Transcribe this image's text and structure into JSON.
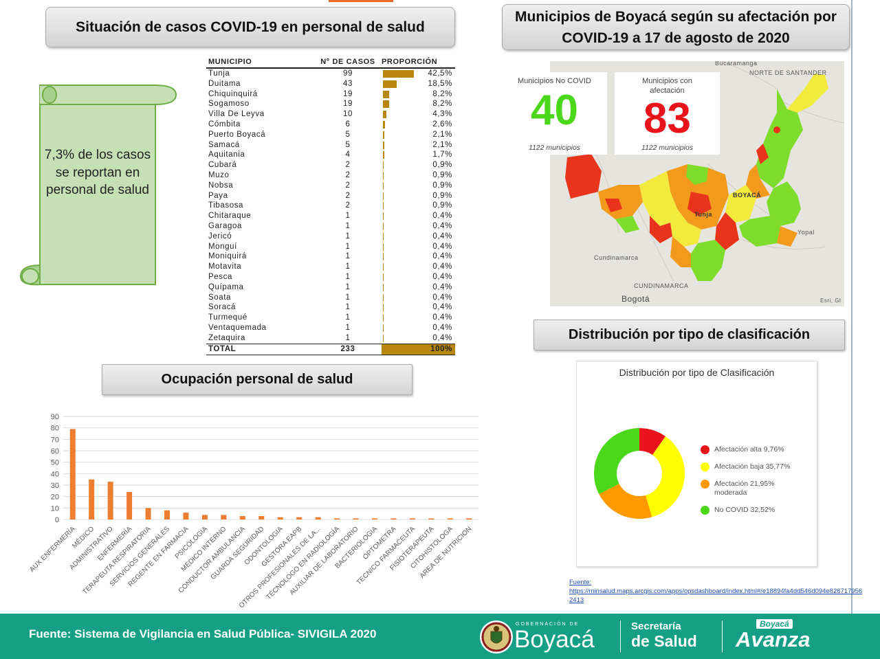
{
  "titles": {
    "cases_staff": "Situación de casos COVID-19 en personal de salud",
    "map_line1": "Municipios de Boyacá según su afectación por",
    "map_line2": "COVID-19 a 17 de agosto de 2020",
    "occupation": "Ocupación personal de salud",
    "distribution": "Distribución por tipo de clasificación"
  },
  "scroll_note": "7,3% de los casos se reportan en personal de salud",
  "table": {
    "headers": [
      "MUNICIPIO",
      "N° DE CASOS",
      "PROPORCIÓN"
    ],
    "rows": [
      {
        "municipio": "Tunja",
        "casos": "99",
        "proporcion": "42,5%",
        "p": 42.5
      },
      {
        "municipio": "Duitama",
        "casos": "43",
        "proporcion": "18,5%",
        "p": 18.5
      },
      {
        "municipio": "Chiquinquirá",
        "casos": "19",
        "proporcion": "8,2%",
        "p": 8.2
      },
      {
        "municipio": "Sogamoso",
        "casos": "19",
        "proporcion": "8,2%",
        "p": 8.2
      },
      {
        "municipio": "Villa De Leyva",
        "casos": "10",
        "proporcion": "4,3%",
        "p": 4.3
      },
      {
        "municipio": "Cómbita",
        "casos": "6",
        "proporcion": "2,6%",
        "p": 2.6
      },
      {
        "municipio": "Puerto Boyacá",
        "casos": "5",
        "proporcion": "2,1%",
        "p": 2.1
      },
      {
        "municipio": "Samacá",
        "casos": "5",
        "proporcion": "2,1%",
        "p": 2.1
      },
      {
        "municipio": "Aquitania",
        "casos": "4",
        "proporcion": "1,7%",
        "p": 1.7
      },
      {
        "municipio": "Cubará",
        "casos": "2",
        "proporcion": "0,9%",
        "p": 0.9
      },
      {
        "municipio": "Muzo",
        "casos": "2",
        "proporcion": "0,9%",
        "p": 0.9
      },
      {
        "municipio": "Nobsa",
        "casos": "2",
        "proporcion": "0,9%",
        "p": 0.9
      },
      {
        "municipio": "Paya",
        "casos": "2",
        "proporcion": "0,9%",
        "p": 0.9
      },
      {
        "municipio": "Tibasosa",
        "casos": "2",
        "proporcion": "0,9%",
        "p": 0.9
      },
      {
        "municipio": "Chitaraque",
        "casos": "1",
        "proporcion": "0,4%",
        "p": 0.4
      },
      {
        "municipio": "Garagoa",
        "casos": "1",
        "proporcion": "0,4%",
        "p": 0.4
      },
      {
        "municipio": "Jericó",
        "casos": "1",
        "proporcion": "0,4%",
        "p": 0.4
      },
      {
        "municipio": "Monguí",
        "casos": "1",
        "proporcion": "0,4%",
        "p": 0.4
      },
      {
        "municipio": "Moniquirá",
        "casos": "1",
        "proporcion": "0,4%",
        "p": 0.4
      },
      {
        "municipio": "Motavita",
        "casos": "1",
        "proporcion": "0,4%",
        "p": 0.4
      },
      {
        "municipio": "Pesca",
        "casos": "1",
        "proporcion": "0,4%",
        "p": 0.4
      },
      {
        "municipio": "Quípama",
        "casos": "1",
        "proporcion": "0,4%",
        "p": 0.4
      },
      {
        "municipio": "Soata",
        "casos": "1",
        "proporcion": "0,4%",
        "p": 0.4
      },
      {
        "municipio": "Soracá",
        "casos": "1",
        "proporcion": "0,4%",
        "p": 0.4
      },
      {
        "municipio": "Turmequé",
        "casos": "1",
        "proporcion": "0,4%",
        "p": 0.4
      },
      {
        "municipio": "Ventaquemada",
        "casos": "1",
        "proporcion": "0,4%",
        "p": 0.4
      },
      {
        "municipio": "Zetaquira",
        "casos": "1",
        "proporcion": "0,4%",
        "p": 0.4
      }
    ],
    "total": {
      "label": "TOTAL",
      "casos": "233",
      "proporcion": "100%"
    },
    "bar_color": "#b8860b"
  },
  "map": {
    "kpi_no_covid": {
      "label": "Municipios No COVID",
      "value": "40",
      "sub": "1122 municipios",
      "color": "#4cd81a"
    },
    "kpi_covid": {
      "label": "Municipios con afectación",
      "value": "83",
      "sub": "1122 municipios",
      "color": "#e8131b"
    },
    "labels": {
      "norte": "NORTE DE SANTANDER",
      "boyaca": "BOYACÁ",
      "tunja": "Tunja",
      "yopal": "Yopal",
      "cundinamarca_1": "Cundinamarca",
      "cundinamarca_2": "CUNDINAMARCA",
      "bogota": "Bogotá",
      "bucaramanga": "Bucaramanga",
      "esri": "Esri, Gl"
    }
  },
  "chart_data": [
    {
      "type": "bar",
      "title": "",
      "xlabel": "",
      "ylabel": "",
      "ylim": [
        0,
        90
      ],
      "yticks": [
        0,
        10,
        20,
        30,
        40,
        50,
        60,
        70,
        80,
        90
      ],
      "categories": [
        "AUX ENFERMERÍA",
        "MÉDICO",
        "ADMINISTRATIVO",
        "ENFERMERÍA",
        "TERAPEUTA RESPIRATORIA",
        "SERVICIOS GENERALES",
        "REGENTE EN FARMACIA",
        "PSICÓLOGIA",
        "MEDICO INTERNO",
        "CONDUCTOR AMBULANCIA",
        "GUARDA SEGURIDAD",
        "ODONTOLOGIA",
        "GESTORA EAPB",
        "OTROS PROFESIONALES DE LA...",
        "TÉCNOLOGO EN RADIOLOGÍA",
        "AUXILIAR DE LABORATORIO",
        "BACTERIOLOGIA",
        "OPTOMETRA",
        "TECNICO FARMACEUTA",
        "FISIOTERAPEUTA",
        "CITOHISTOLOGA",
        "AREA DE NUTRICION"
      ],
      "values": [
        79,
        35,
        33,
        24,
        10,
        8,
        6,
        4,
        4,
        3,
        3,
        2,
        2,
        2,
        1,
        1,
        1,
        1,
        1,
        1,
        1,
        1
      ],
      "color": "#ed7d31",
      "grid": true
    },
    {
      "type": "pie",
      "title": "Distribución por tipo de Clasificación",
      "donut": true,
      "slices": [
        {
          "label": "Afectación alta",
          "value": 9.76,
          "display": "9,76%",
          "color": "#e8131b"
        },
        {
          "label": "Afectación baja",
          "value": 35.77,
          "display": "35,77%",
          "color": "#ffff00"
        },
        {
          "label": "Afectación moderada",
          "value": 21.95,
          "display": "21,95%",
          "color": "#ff9900"
        },
        {
          "label": "No COVID",
          "value": 32.52,
          "display": "32,52%",
          "color": "#4cd81a"
        }
      ],
      "legend_lines": [
        "Afectación alta  9,76%",
        "Afectación baja  35,77%",
        "Afectación  21,95%",
        "moderada",
        "No COVID  32,52%"
      ],
      "legend_position": "right"
    }
  ],
  "source_link": {
    "label": "Fuente:",
    "url": "https://minsalud.maps.arcgis.com/apps/opsdashboard/index.html#/e18894fa4dd546d094e8267179562413"
  },
  "footer": {
    "source": "Fuente: Sistema de Vigilancia en Salud Pública- SIVIGILA 2020",
    "gob_small": "GOBERNACIÓN DE",
    "gob_big": "Boyacá",
    "sec_1": "Secretaría",
    "sec_2": "de Salud",
    "avanza_badge": "Boyacá",
    "avanza_word": "Avanza",
    "color": "#15a085"
  }
}
